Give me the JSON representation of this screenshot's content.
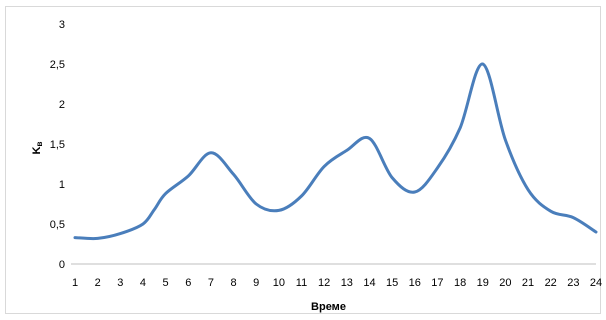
{
  "chart_data": {
    "type": "line",
    "xlabel": "Време",
    "ylabel": "K",
    "ylabel_subscript": "в",
    "ylim": [
      0,
      3
    ],
    "yticks": [
      "0",
      "0,5",
      "1",
      "1,5",
      "2",
      "2,5",
      "3"
    ],
    "grid": false,
    "legend": "none",
    "series": [
      {
        "color": "#4a7ebb",
        "x": [
          1,
          2,
          3,
          4,
          4.5,
          5,
          6,
          7,
          8,
          9,
          10,
          11,
          12,
          13,
          14,
          15,
          16,
          17,
          18,
          19,
          20,
          21,
          22,
          23,
          24
        ],
        "y": [
          0.33,
          0.32,
          0.38,
          0.5,
          0.68,
          0.88,
          1.1,
          1.39,
          1.12,
          0.75,
          0.67,
          0.85,
          1.22,
          1.42,
          1.57,
          1.08,
          0.9,
          1.2,
          1.7,
          2.5,
          1.55,
          0.93,
          0.66,
          0.58,
          0.4
        ]
      }
    ],
    "categories": [
      "1",
      "2",
      "3",
      "4",
      "5",
      "6",
      "7",
      "8",
      "9",
      "10",
      "11",
      "12",
      "13",
      "14",
      "15",
      "16",
      "17",
      "18",
      "19",
      "20",
      "21",
      "22",
      "23",
      "24"
    ]
  }
}
